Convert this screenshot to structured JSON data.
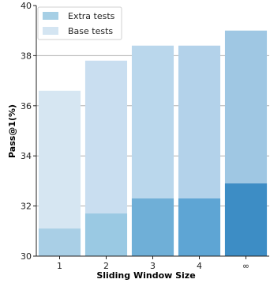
{
  "chart_data": {
    "type": "bar",
    "stacked_overlay": true,
    "xlabel": "Sliding Window Size",
    "ylabel": "Pass@1(%)",
    "ylim": [
      30,
      40
    ],
    "yticks": [
      "30",
      "32",
      "34",
      "36",
      "38",
      "40"
    ],
    "categories": [
      "1",
      "2",
      "3",
      "4",
      "∞"
    ],
    "grid": "horizontal",
    "legend": "top-left",
    "series": [
      {
        "name": "Extra tests",
        "values": [
          31.1,
          31.7,
          32.3,
          32.3,
          32.9
        ],
        "colors": [
          "#a9cfe6",
          "#9ac9e3",
          "#6fafd7",
          "#5ea5d4",
          "#3d8dc5"
        ]
      },
      {
        "name": "Base tests",
        "values": [
          36.6,
          37.8,
          38.4,
          38.4,
          39.0
        ],
        "colors": [
          "#d6e6f2",
          "#c9def0",
          "#bad7ec",
          "#b3d2ea",
          "#9fc7e3"
        ]
      }
    ],
    "legend_colors": {
      "Extra tests": "#a6cfe5",
      "Base tests": "#d4e5f2"
    }
  }
}
